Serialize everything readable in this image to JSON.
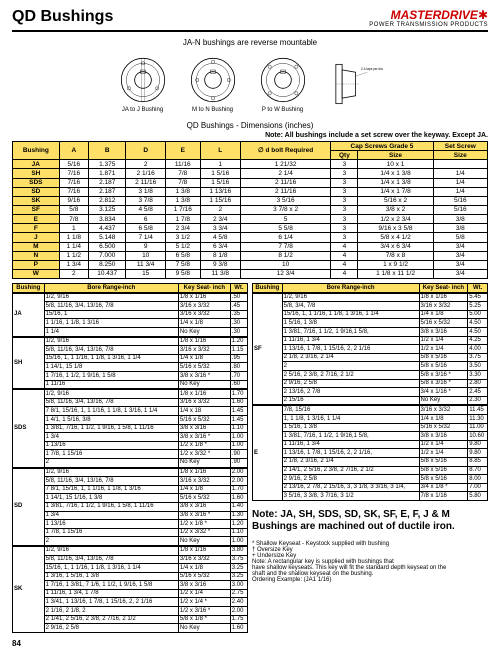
{
  "header": {
    "title": "QD Bushings",
    "brand": "MASTERDRIVE",
    "brand_sub": "POWER TRANSMISSION PRODUCTS"
  },
  "subtitle": "JA-N bushings are reverse mountable",
  "diag_labels": [
    "JA to J\nBushing",
    "M to N\nBushing",
    "P to W\nBushing"
  ],
  "side_note": "2-4 taps per dia\non diameter",
  "dim_title": "QD Bushings - Dimensions (inches)",
  "note_keyway": "Note: All bushings include a set screw\nover the keyway. Except JA.",
  "main_headers": {
    "bushing": "Bushing",
    "a": "A",
    "b": "B",
    "d": "D",
    "e": "E",
    "l": "L",
    "dbolt": "∅ d bolt\nRequired",
    "cap": "Cap Screws Grade 5",
    "set": "Set Screw",
    "qty": "Qty",
    "size": "Size",
    "size2": "Size"
  },
  "main_rows": [
    [
      "JA",
      "5/16",
      "1.375",
      "2",
      "11/16",
      "1",
      "1 21/32",
      "3",
      "10 x 1",
      ""
    ],
    [
      "SH",
      "7/16",
      "1.871",
      "2 1/16",
      "7/8",
      "1 5/16",
      "2 1/4",
      "3",
      "1/4 x 1 3/8",
      "1/4"
    ],
    [
      "SDS",
      "7/16",
      "2.187",
      "2 11/16",
      "7/8",
      "1 5/16",
      "2 11/16",
      "3",
      "1/4 x 1 3/8",
      "1/4"
    ],
    [
      "SD",
      "7/16",
      "2.187",
      "3 1/8",
      "1 3/8",
      "1 13/16",
      "2 11/16",
      "3",
      "1/4 x 1 7/8",
      "1/4"
    ],
    [
      "SK",
      "9/16",
      "2.812",
      "3 7/8",
      "1 3/8",
      "1 15/16",
      "3 5/16",
      "3",
      "5/16 x 2",
      "5/16"
    ],
    [
      "SF",
      "5/8",
      "3.125",
      "4 5/8",
      "1 7/16",
      "2",
      "3 7/8 x 2",
      "3",
      "3/8 x 2",
      "5/16"
    ],
    [
      "E",
      "7/8",
      "3.834",
      "6",
      "1 7/8",
      "2 3/4",
      "5",
      "3",
      "1/2 x 2 3/4",
      "3/8"
    ],
    [
      "F",
      "1",
      "4.437",
      "6 5/8",
      "2 3/4",
      "3 3/4",
      "5 5/8",
      "3",
      "9/16 x 3 5/8",
      "3/8"
    ],
    [
      "J",
      "1 1/8",
      "5.148",
      "7 1/4",
      "3 1/2",
      "4 5/8",
      "6 1/4",
      "3",
      "5/8 x 4 1/2",
      "5/8"
    ],
    [
      "M",
      "1 1/4",
      "6.500",
      "9",
      "5 1/2",
      "6 3/4",
      "7 7/8",
      "4",
      "3/4 x 6 3/4",
      "3/4"
    ],
    [
      "N",
      "1 1/2",
      "7.000",
      "10",
      "6 5/8",
      "8 1/8",
      "8 1/2",
      "4",
      "7/8 x 8",
      "3/4"
    ],
    [
      "P",
      "1 3/4",
      "8.250",
      "11 3/4",
      "7 5/8",
      "9 3/8",
      "10",
      "4",
      "1 x 9 1/2",
      "3/4"
    ],
    [
      "W",
      "2",
      "10.437",
      "15",
      "9 5/8",
      "11 3/8",
      "12 3/4",
      "4",
      "1 1/8 x 11 1/2",
      "3/4"
    ]
  ],
  "bore_header": {
    "bushing": "Bushing",
    "bore": "Bore Range-inch",
    "key": "Key Seat- inch",
    "wt": "Wt."
  },
  "bore_left": [
    {
      "b": "JA",
      "r": [
        [
          "1/2, 9/16",
          "1/8 x 1/16",
          ".50"
        ],
        [
          "5/8, 11/16, 3/4, 13/16, 7/8",
          "3/16 x 3/32",
          ".45"
        ],
        [
          "15/16, 1",
          "3/16 x 3/32",
          ".35"
        ],
        [
          "1 1/16, 1 1/8, 1 3/16",
          "1/4 x 1/8",
          ".30"
        ],
        [
          "1 1/4",
          "No Key",
          ".30"
        ]
      ]
    },
    {
      "b": "SH",
      "r": [
        [
          "1/2, 9/16",
          "1/8 x 1/16",
          "1.20"
        ],
        [
          "5/8, 11/16, 3/4, 13/16, 7/8",
          "3/16 x 3/32",
          "1.15"
        ],
        [
          "15/16, 1, 1 1/16, 1 1/8, 1 3/16, 1 1/4",
          "1/4 x 1/8",
          ".95"
        ],
        [
          "1 14/1, 15 1/8",
          "5/16 x 5/32",
          ".80"
        ],
        [
          "1 7/16, 1 1/2, 1 9/16, 1 5/8",
          "3/8 x 3/16 *",
          ".70"
        ],
        [
          "1 11/16",
          "No Key",
          ".60"
        ]
      ]
    },
    {
      "b": "SDS",
      "r": [
        [
          "1/2, 9/16",
          "1/8 x 1/16",
          "1.70"
        ],
        [
          "5/8, 11/16, 3/4, 13/16, 7/8",
          "3/16 x 3/32",
          "1.60"
        ],
        [
          "7 8/1, 15/16, 1, 1 1/16, 1 1/8, 1 3/16, 1 1/4",
          "1/4 x 18",
          "1.45"
        ],
        [
          "1 4/1, 1 5/16, 3/8",
          "5/16 x 5/32",
          "1.45"
        ],
        [
          "1 3/81, 7/16, 1 1/2, 1 9/16, 1 5/8, 1 11/16",
          "3/8 x 3/16",
          "1.10"
        ],
        [
          "1 3/4",
          "3/8 x 3/16 *",
          "1.00"
        ],
        [
          "1 13/16",
          "1/2 x 1/8 *",
          "1.00"
        ],
        [
          "1 7/8, 1 15/16",
          "1/2 x 3/32 *",
          ".90"
        ],
        [
          "2",
          "No Key",
          ".90"
        ]
      ]
    },
    {
      "b": "SD",
      "r": [
        [
          "1/2, 9/16",
          "1/8 x 1/16",
          "2.00"
        ],
        [
          "5/8, 11/16, 3/4, 13/16, 7/8",
          "3/16 x 3/32",
          "2.00"
        ],
        [
          "7 8/1, 15/16, 1, 1 1/16, 1 1/8, 1 3/16",
          "1/4 x 1/8",
          "1.70"
        ],
        [
          "1 14/1, 15 1/16, 1 3/8",
          "5/16 x 5/32",
          "1.60"
        ],
        [
          "1 3/81, 7/16, 1 1/2, 1 9/16, 1 5/8, 1 11/16",
          "3/8 x 3/16",
          "1.40"
        ],
        [
          "1 3/4",
          "3/8 x 3/16 *",
          "1.30"
        ],
        [
          "1 13/16",
          "1/2 x 1/8 *",
          "1.20"
        ],
        [
          "1 7/8, 1 15/16",
          "1/2 x 3/32 *",
          "1.10"
        ],
        [
          "2",
          "No Key",
          "1.00"
        ]
      ]
    },
    {
      "b": "SK",
      "r": [
        [
          "1/2, 9/16",
          "1/8 x 1/16",
          "3.80"
        ],
        [
          "5/8, 11/16, 3/4, 13/16, 7/8",
          "3/16 x 3/32",
          "3.75"
        ],
        [
          "15/16, 1, 1 1/16, 1 1/8, 1 3/16, 1 1/4",
          "1/4 x 1/8",
          "3.25"
        ],
        [
          "1 3/16, 1 5/16, 1 3/8",
          "5/16 x 5/32",
          "3.25"
        ],
        [
          "1 7/16, 1 3/81, 7 1/6, 1 1/2, 1 9/16, 1 5/8",
          "3/8 x 3/16",
          "3.00"
        ],
        [
          "1 11/16, 1 3/4, 1 7/8",
          "1/2 x 1/4",
          "2.75"
        ],
        [
          "1 3/41, 1 13/16, 1 7/8, 1 15/16, 2, 2 1/16",
          "1/2 x 1/4 *",
          "2.40"
        ],
        [
          "2 1/16, 2 1/8, 2",
          "1/2 x 3/16 *",
          "2.00"
        ],
        [
          "2 1/41, 2 5/16, 2 3/8, 2 7/16, 2 1/2",
          "5/8 x 1/8 *",
          "1.75"
        ],
        [
          "2 9/16, 2 5/8",
          "No Key",
          "1.60"
        ]
      ]
    }
  ],
  "bore_right": [
    {
      "b": "SF",
      "r": [
        [
          "1/2, 9/16",
          "1/8 x 1/16",
          "5.45"
        ],
        [
          "5/8, 3/4, 7/8",
          "3/16 x 3/32",
          "5.25"
        ],
        [
          "15/16, 1, 1 1/16, 1 1/8, 1 3/16, 1 1/4",
          "1/4 x 1/8",
          "5.00"
        ],
        [
          "1 5/16, 1 3/8",
          "5/16 x 5/32",
          "4.50"
        ],
        [
          "1 3/81, 7/16, 1 1/2, 1 9/16,1 5/8,",
          "3/8 x 3/16",
          "4.50"
        ],
        [
          "1 11/16, 1 3/4",
          "1/2 x 1/4",
          "4.25"
        ],
        [
          "1 13/16, 1 7/8, 1 15/16, 2, 2 1/16",
          "1/2 x 1/4",
          "4.00"
        ],
        [
          "2 1/8, 2 3/16, 2 1/4",
          "5/8 x 5/16",
          "3.75"
        ],
        [
          "2",
          "5/8 x 5/16",
          "3.50"
        ],
        [
          "2 5/16, 2 3/8, 2 7/16, 2 1/2",
          "5/8 x 3/16 *",
          "3.30"
        ],
        [
          "2 9/16, 2 5/8",
          "5/8 x 3/16 *",
          "2.80"
        ],
        [
          "2 13/16, 2 7/8",
          "3/4 x 1/16 *",
          "2.45"
        ],
        [
          "2 15/16",
          "No Key",
          "2.30"
        ]
      ]
    },
    {
      "b": "E",
      "r": [
        [
          "7/8, 15/16",
          "3/16 x 3/32",
          "11.45"
        ],
        [
          "1, 1 1/8, 1 3/16, 1 1/4",
          "1/4 x 1/8",
          "11.30"
        ],
        [
          "1 5/16, 1 3/8",
          "5/16 x 5/32",
          "11.00"
        ],
        [
          "1 3/81, 7/16, 1 1/2, 1 9/16,1 5/8,",
          "3/8 x 3/16",
          "10.60"
        ],
        [
          "1 11/16, 1 3/4",
          "1/2 x 1/4",
          "9.80"
        ],
        [
          "1 13/16, 1 7/8, 1 15/16, 2, 2 1/16,",
          "1/2 x 1/4",
          "9.80"
        ],
        [
          "2 1/8, 2 3/16, 2 1/4",
          "5/8 x 5/16",
          "8.85"
        ],
        [
          "2 14/1, 2 5/16, 2 3/8, 2 7/16, 2 1/2",
          "5/8 x 5/16",
          "8.70"
        ],
        [
          "2 9/16, 2 5/8",
          "5/8 x 5/16",
          "8.00"
        ],
        [
          "2 13/16, 2 7/8, 2 15/16, 3, 3 1/8, 3 3/16, 3 1/4,",
          "3/4 x 1/8 *",
          "7.00"
        ],
        [
          "3 5/16, 3 3/8, 3 7/16, 3 1/2",
          "7/8 x 1/16",
          "5.80"
        ]
      ]
    }
  ],
  "note_ductile": "Note: JA, SH, SDS, SD, SK, SF, E, F, J & M Bushings are machined out of ductile iron.",
  "legend": [
    "* Shallow Keyseat - Keystock supplied with bushing",
    "† Oversize Key",
    "+ Undersize Key",
    "Note: A rectangular key is supplied with bushings that",
    "have shallow keyseats. This key will fit the standard depth keyseat on the",
    "shaft and the shallow keyseat on the bushing.",
    "Ordering Example: (JA1 1/16)"
  ],
  "page_num": "84"
}
